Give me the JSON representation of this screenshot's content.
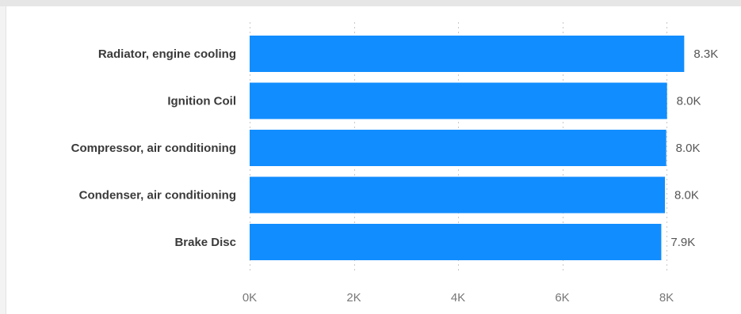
{
  "chart_data": {
    "type": "bar",
    "orientation": "horizontal",
    "categories": [
      "Radiator, engine cooling",
      "Ignition Coil",
      "Compressor, air conditioning",
      "Condenser, air conditioning",
      "Brake Disc"
    ],
    "values": [
      8340,
      8010,
      7995,
      7970,
      7900
    ],
    "data_labels": [
      "8.3K",
      "8.0K",
      "8.0K",
      "8.0K",
      "7.9K"
    ],
    "xlim": [
      0,
      8000
    ],
    "x_ticks": [
      0,
      2000,
      4000,
      6000,
      8000
    ],
    "x_tick_labels": [
      "0K",
      "2K",
      "4K",
      "6K",
      "8K"
    ],
    "title": "",
    "xlabel": "",
    "ylabel": "",
    "grid": true,
    "bar_color": "#118DFF"
  }
}
